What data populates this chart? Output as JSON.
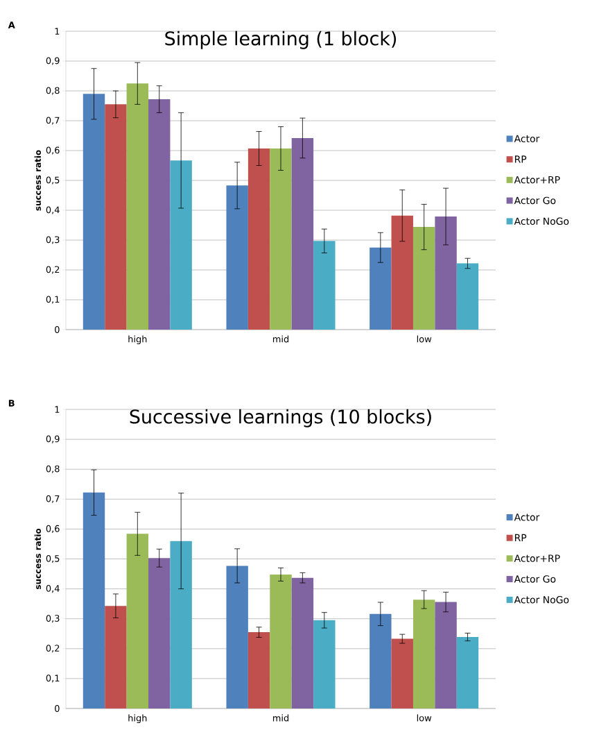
{
  "chart_data": [
    {
      "type": "bar",
      "title": "Simple learning (1 block)",
      "ylabel": "success ratio",
      "annotations": [
        "A"
      ],
      "categories": [
        "high",
        "mid",
        "low"
      ],
      "ylim": [
        0,
        1
      ],
      "yticks": [
        0,
        {
          "value": 0.1,
          "label": "0,1"
        },
        {
          "value": 0.2,
          "label": "0,2"
        },
        {
          "value": 0.3,
          "label": "0,3"
        },
        {
          "value": 0.4,
          "label": "0,4"
        },
        {
          "value": 0.5,
          "label": "0,5"
        },
        {
          "value": 0.6,
          "label": "0,6"
        },
        {
          "value": 0.7,
          "label": "0,7"
        },
        {
          "value": 0.8,
          "label": "0,8"
        },
        {
          "value": 0.9,
          "label": "0,9"
        },
        1
      ],
      "grid": "y",
      "legend": "right",
      "series": [
        {
          "name": "Actor",
          "color": "#4f81bd",
          "values": [
            0.79,
            0.483,
            0.275
          ],
          "errors": [
            0.085,
            0.078,
            0.05
          ]
        },
        {
          "name": "RP",
          "color": "#c0504d",
          "values": [
            0.755,
            0.607,
            0.382
          ],
          "errors": [
            0.045,
            0.057,
            0.086
          ]
        },
        {
          "name": "Actor+RP",
          "color": "#9bbb59",
          "values": [
            0.825,
            0.607,
            0.344
          ],
          "errors": [
            0.07,
            0.073,
            0.076
          ]
        },
        {
          "name": "Actor Go",
          "color": "#8064a2",
          "values": [
            0.772,
            0.642,
            0.379
          ],
          "errors": [
            0.045,
            0.067,
            0.095
          ]
        },
        {
          "name": "Actor NoGo",
          "color": "#4bacc6",
          "values": [
            0.567,
            0.297,
            0.222
          ],
          "errors": [
            0.16,
            0.04,
            0.017
          ]
        }
      ]
    },
    {
      "type": "bar",
      "title": "Successive learnings (10 blocks)",
      "ylabel": "success ratio",
      "annotations": [
        "B"
      ],
      "categories": [
        "high",
        "mid",
        "low"
      ],
      "ylim": [
        0,
        1
      ],
      "yticks": [
        0,
        {
          "value": 0.1,
          "label": "0,1"
        },
        {
          "value": 0.2,
          "label": "0,2"
        },
        {
          "value": 0.3,
          "label": "0,3"
        },
        {
          "value": 0.4,
          "label": "0,4"
        },
        {
          "value": 0.5,
          "label": "0,5"
        },
        {
          "value": 0.6,
          "label": "0,6"
        },
        {
          "value": 0.7,
          "label": "0,7"
        },
        {
          "value": 0.8,
          "label": "0,8"
        },
        {
          "value": 0.9,
          "label": "0,9"
        },
        1
      ],
      "grid": "y",
      "legend": "right",
      "series": [
        {
          "name": "Actor",
          "color": "#4f81bd",
          "values": [
            0.722,
            0.477,
            0.316
          ],
          "errors": [
            0.076,
            0.057,
            0.039
          ]
        },
        {
          "name": "RP",
          "color": "#c0504d",
          "values": [
            0.343,
            0.255,
            0.233
          ],
          "errors": [
            0.04,
            0.017,
            0.015
          ]
        },
        {
          "name": "Actor+RP",
          "color": "#9bbb59",
          "values": [
            0.584,
            0.448,
            0.364
          ],
          "errors": [
            0.072,
            0.022,
            0.03
          ]
        },
        {
          "name": "Actor Go",
          "color": "#8064a2",
          "values": [
            0.503,
            0.437,
            0.356
          ],
          "errors": [
            0.03,
            0.017,
            0.033
          ]
        },
        {
          "name": "Actor NoGo",
          "color": "#4bacc6",
          "values": [
            0.56,
            0.295,
            0.239
          ],
          "errors": [
            0.16,
            0.026,
            0.013
          ]
        }
      ]
    }
  ]
}
